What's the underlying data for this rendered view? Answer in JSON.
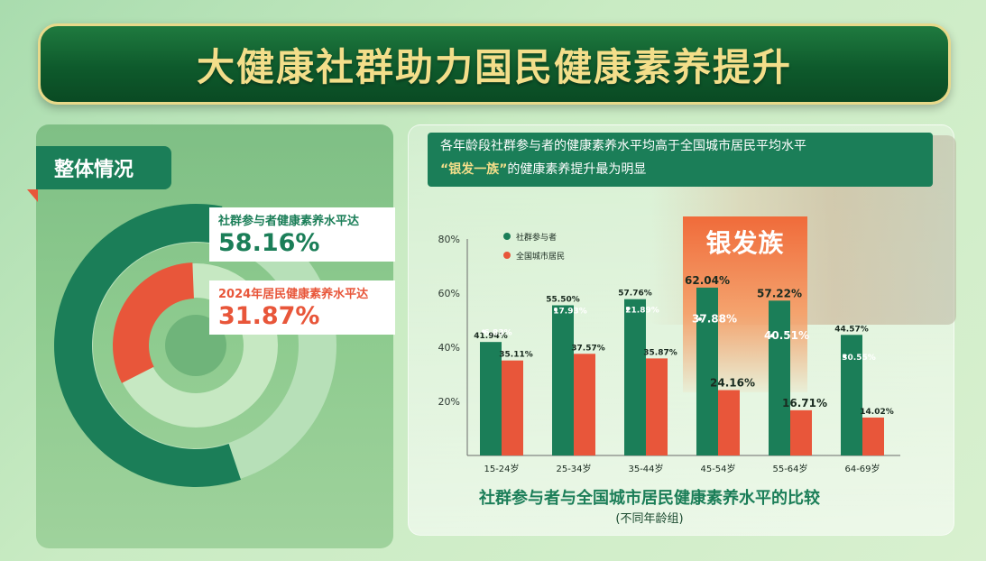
{
  "header": {
    "title": "大健康社群助力国民健康素养提升"
  },
  "overview": {
    "tab_label": "整体情况",
    "community": {
      "label": "社群参与者健康素养水平达",
      "value_text": "58.16%",
      "value": 58.16
    },
    "national": {
      "label": "2024年居民健康素养水平达",
      "value_text": "31.87%",
      "value": 31.87
    }
  },
  "headline": {
    "line1": "各年龄段社群参与者的健康素养水平均高于全国城市居民平均水平",
    "line2_quote": "“银发一族”",
    "line2_rest": "的健康素养提升最为明显"
  },
  "highlight": {
    "label": "银发族"
  },
  "colors": {
    "green": "#1b7e58",
    "orange": "#e8563a",
    "gold": "#f3de8a"
  },
  "chart_data": {
    "type": "bar",
    "title": "社群参与者与全国城市居民健康素养水平的比较",
    "subtitle": "(不同年龄组)",
    "categories": [
      "15-24岁",
      "25-34岁",
      "35-44岁",
      "45-54岁",
      "55-64岁",
      "64-69岁"
    ],
    "series": [
      {
        "name": "社群参与者",
        "color": "#1b7e58",
        "values": [
          41.94,
          55.5,
          57.76,
          62.04,
          57.22,
          44.57
        ],
        "labels": [
          "41.94%",
          "55.50%",
          "57.76%",
          "62.04%",
          "57.22%",
          "44.57%"
        ]
      },
      {
        "name": "全国城市居民",
        "color": "#e8563a",
        "values": [
          35.11,
          37.57,
          35.87,
          24.16,
          16.71,
          14.02
        ],
        "labels": [
          "35.11%",
          "37.57%",
          "35.87%",
          "24.16%",
          "16.71%",
          "14.02%"
        ]
      }
    ],
    "differences": [
      "6.83%",
      "17.93%",
      "21.89%",
      "37.88%",
      "40.51%",
      "30.55%"
    ],
    "yticks": [
      "20%",
      "40%",
      "60%",
      "80%"
    ],
    "ylim": [
      0,
      80
    ],
    "legend_position": "top-left"
  }
}
